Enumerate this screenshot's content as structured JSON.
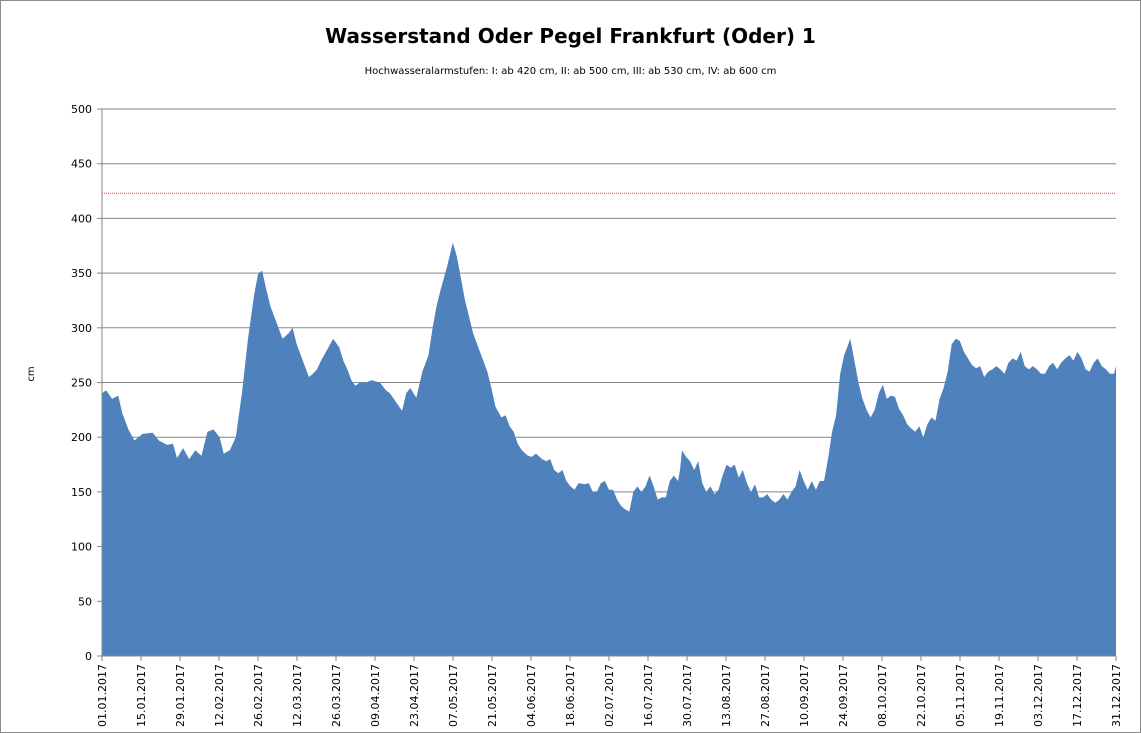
{
  "chart_data": {
    "type": "area",
    "title": "Wasserstand Oder Pegel Frankfurt (Oder) 1",
    "subtitle": "Hochwasseralarmstufen: I: ab 420 cm, II: ab 500 cm, III: ab 530 cm,  IV: ab 600 cm",
    "ylabel": "cm",
    "xlabel": "",
    "ylim": [
      0,
      500
    ],
    "yticks": [
      "0",
      "50",
      "100",
      "150",
      "200",
      "250",
      "300",
      "350",
      "400",
      "450",
      "500"
    ],
    "xticks": [
      "01.01.2017",
      "15.01.2017",
      "29.01.2017",
      "12.02.2017",
      "26.02.2017",
      "12.03.2017",
      "26.03.2017",
      "09.04.2017",
      "23.04.2017",
      "07.05.2017",
      "21.05.2017",
      "04.06.2017",
      "18.06.2017",
      "02.07.2017",
      "16.07.2017",
      "30.07.2017",
      "13.08.2017",
      "27.08.2017",
      "10.09.2017",
      "24.09.2017",
      "08.10.2017",
      "22.10.2017",
      "05.11.2017",
      "19.11.2017",
      "03.12.2017",
      "17.12.2017",
      "31.12.2017"
    ],
    "grid": true,
    "legend": "none",
    "threshold": 423,
    "colors": {
      "area": "#4f81bd",
      "threshold": "#e03c31",
      "grid": "#868686"
    },
    "series": [
      {
        "x_start": "01.01.2017",
        "x_end": "31.12.2017",
        "values": [
          [
            0,
            240
          ],
          [
            2,
            243
          ],
          [
            5,
            235
          ],
          [
            8,
            238
          ],
          [
            10,
            222
          ],
          [
            13,
            207
          ],
          [
            16,
            197
          ],
          [
            20,
            203
          ],
          [
            25,
            204
          ],
          [
            28,
            197
          ],
          [
            32,
            193
          ],
          [
            35,
            194
          ],
          [
            37,
            181
          ],
          [
            40,
            190
          ],
          [
            43,
            180
          ],
          [
            46,
            188
          ],
          [
            49,
            183
          ],
          [
            52,
            205
          ],
          [
            55,
            207
          ],
          [
            58,
            200
          ],
          [
            60,
            185
          ],
          [
            63,
            188
          ],
          [
            66,
            200
          ],
          [
            69,
            240
          ],
          [
            72,
            290
          ],
          [
            75,
            330
          ],
          [
            77,
            350
          ],
          [
            79,
            352
          ],
          [
            81,
            335
          ],
          [
            83,
            320
          ],
          [
            86,
            305
          ],
          [
            89,
            290
          ],
          [
            92,
            295
          ],
          [
            94,
            300
          ],
          [
            96,
            285
          ],
          [
            99,
            270
          ],
          [
            102,
            255
          ],
          [
            104,
            258
          ],
          [
            106,
            262
          ],
          [
            108,
            270
          ],
          [
            111,
            280
          ],
          [
            114,
            290
          ],
          [
            117,
            282
          ],
          [
            119,
            270
          ],
          [
            121,
            262
          ],
          [
            123,
            252
          ],
          [
            125,
            247
          ],
          [
            127,
            250
          ],
          [
            130,
            250
          ],
          [
            133,
            252
          ],
          [
            137,
            250
          ],
          [
            140,
            243
          ],
          [
            142,
            240
          ],
          [
            145,
            232
          ],
          [
            148,
            224
          ],
          [
            150,
            240
          ],
          [
            152,
            245
          ],
          [
            155,
            236
          ],
          [
            158,
            260
          ],
          [
            161,
            275
          ],
          [
            163,
            300
          ],
          [
            165,
            320
          ],
          [
            167,
            335
          ],
          [
            170,
            355
          ],
          [
            172,
            370
          ],
          [
            173,
            378
          ],
          [
            175,
            365
          ],
          [
            177,
            345
          ],
          [
            179,
            325
          ],
          [
            181,
            310
          ],
          [
            183,
            295
          ],
          [
            186,
            280
          ],
          [
            188,
            270
          ],
          [
            190,
            260
          ],
          [
            192,
            245
          ],
          [
            194,
            228
          ],
          [
            197,
            218
          ],
          [
            199,
            220
          ],
          [
            201,
            210
          ],
          [
            203,
            205
          ],
          [
            205,
            194
          ],
          [
            207,
            188
          ],
          [
            210,
            183
          ],
          [
            212,
            182
          ],
          [
            214,
            185
          ],
          [
            217,
            180
          ],
          [
            219,
            178
          ],
          [
            221,
            180
          ],
          [
            223,
            170
          ],
          [
            225,
            167
          ],
          [
            227,
            170
          ],
          [
            229,
            160
          ],
          [
            231,
            155
          ],
          [
            233,
            152
          ],
          [
            235,
            158
          ],
          [
            238,
            157
          ],
          [
            240,
            158
          ],
          [
            242,
            150
          ],
          [
            244,
            150
          ],
          [
            246,
            158
          ],
          [
            248,
            160
          ],
          [
            250,
            152
          ],
          [
            252,
            152
          ],
          [
            254,
            143
          ],
          [
            256,
            137
          ],
          [
            258,
            134
          ],
          [
            260,
            132
          ],
          [
            262,
            150
          ],
          [
            264,
            155
          ],
          [
            266,
            150
          ],
          [
            268,
            155
          ],
          [
            270,
            165
          ],
          [
            272,
            155
          ],
          [
            274,
            143
          ],
          [
            276,
            145
          ],
          [
            278,
            145
          ],
          [
            280,
            160
          ],
          [
            282,
            165
          ],
          [
            284,
            160
          ],
          [
            285,
            170
          ],
          [
            286,
            188
          ],
          [
            288,
            182
          ],
          [
            290,
            178
          ],
          [
            292,
            170
          ],
          [
            294,
            178
          ],
          [
            296,
            158
          ],
          [
            298,
            150
          ],
          [
            300,
            155
          ],
          [
            302,
            148
          ],
          [
            304,
            152
          ],
          [
            306,
            165
          ],
          [
            308,
            175
          ],
          [
            310,
            172
          ],
          [
            312,
            175
          ],
          [
            314,
            163
          ],
          [
            316,
            170
          ],
          [
            318,
            158
          ],
          [
            320,
            150
          ],
          [
            322,
            157
          ],
          [
            324,
            145
          ],
          [
            326,
            145
          ],
          [
            328,
            148
          ],
          [
            330,
            143
          ],
          [
            332,
            140
          ],
          [
            334,
            143
          ],
          [
            336,
            148
          ],
          [
            338,
            143
          ],
          [
            340,
            150
          ],
          [
            342,
            155
          ],
          [
            344,
            170
          ],
          [
            346,
            160
          ],
          [
            348,
            152
          ],
          [
            350,
            160
          ],
          [
            352,
            152
          ],
          [
            354,
            160
          ],
          [
            356,
            160
          ],
          [
            358,
            180
          ],
          [
            360,
            205
          ],
          [
            362,
            220
          ],
          [
            364,
            258
          ],
          [
            366,
            275
          ],
          [
            368,
            285
          ],
          [
            369,
            290
          ],
          [
            371,
            270
          ],
          [
            373,
            250
          ],
          [
            375,
            235
          ],
          [
            377,
            225
          ],
          [
            379,
            218
          ],
          [
            381,
            225
          ],
          [
            383,
            240
          ],
          [
            385,
            248
          ],
          [
            387,
            235
          ],
          [
            389,
            238
          ],
          [
            391,
            237
          ],
          [
            393,
            226
          ],
          [
            395,
            220
          ],
          [
            397,
            212
          ],
          [
            399,
            208
          ],
          [
            401,
            205
          ],
          [
            403,
            210
          ],
          [
            405,
            200
          ],
          [
            407,
            212
          ],
          [
            409,
            218
          ],
          [
            411,
            215
          ],
          [
            413,
            235
          ],
          [
            415,
            245
          ],
          [
            417,
            260
          ],
          [
            419,
            285
          ],
          [
            421,
            290
          ],
          [
            423,
            288
          ],
          [
            425,
            278
          ],
          [
            427,
            272
          ],
          [
            429,
            266
          ],
          [
            431,
            263
          ],
          [
            433,
            265
          ],
          [
            435,
            255
          ],
          [
            437,
            260
          ],
          [
            439,
            262
          ],
          [
            441,
            265
          ],
          [
            443,
            262
          ],
          [
            445,
            258
          ],
          [
            447,
            268
          ],
          [
            449,
            272
          ],
          [
            451,
            270
          ],
          [
            453,
            278
          ],
          [
            455,
            265
          ],
          [
            457,
            262
          ],
          [
            459,
            265
          ],
          [
            461,
            262
          ],
          [
            463,
            258
          ],
          [
            465,
            258
          ],
          [
            467,
            265
          ],
          [
            469,
            268
          ],
          [
            471,
            262
          ],
          [
            473,
            268
          ],
          [
            475,
            272
          ],
          [
            477,
            275
          ],
          [
            479,
            270
          ],
          [
            481,
            278
          ],
          [
            483,
            272
          ],
          [
            485,
            262
          ],
          [
            487,
            260
          ],
          [
            489,
            268
          ],
          [
            491,
            272
          ],
          [
            493,
            265
          ],
          [
            495,
            262
          ],
          [
            497,
            258
          ],
          [
            499,
            258
          ],
          [
            500,
            265
          ]
        ]
      }
    ]
  }
}
